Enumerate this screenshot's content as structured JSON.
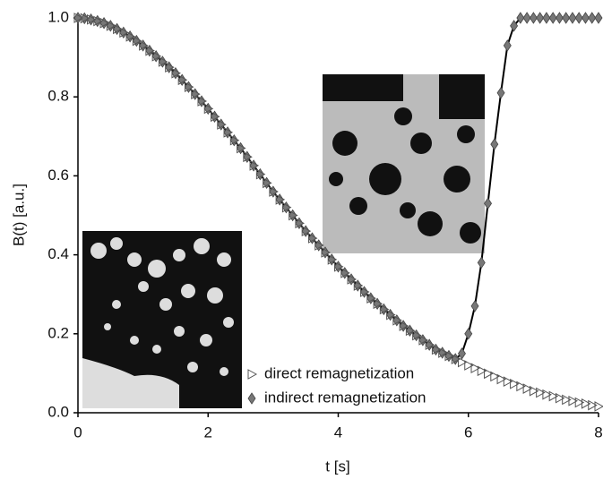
{
  "chart_data": {
    "type": "scatter",
    "xlabel": "t [s]",
    "ylabel": "B(t) [a.u.]",
    "xlim": [
      0,
      8
    ],
    "xticks": [
      0,
      2,
      4,
      6,
      8
    ],
    "ylim": [
      0,
      1
    ],
    "yticks": [
      {
        "value": 0,
        "label": "0.0"
      },
      0.2,
      0.4,
      0.6,
      0.8,
      {
        "value": 1,
        "label": "1.0"
      }
    ],
    "legend": "bottom",
    "x": [
      0.0,
      0.1,
      0.2,
      0.3,
      0.4,
      0.5,
      0.6,
      0.7,
      0.8,
      0.9,
      1.0,
      1.1,
      1.2,
      1.3,
      1.4,
      1.5,
      1.6,
      1.7,
      1.8,
      1.9,
      2.0,
      2.1,
      2.2,
      2.3,
      2.4,
      2.5,
      2.6,
      2.7,
      2.8,
      2.9,
      3.0,
      3.1,
      3.2,
      3.3,
      3.4,
      3.5,
      3.6,
      3.7,
      3.8,
      3.9,
      4.0,
      4.1,
      4.2,
      4.3,
      4.4,
      4.5,
      4.6,
      4.7,
      4.8,
      4.9,
      5.0,
      5.1,
      5.2,
      5.3,
      5.4,
      5.5,
      5.6,
      5.7,
      5.8,
      5.9,
      6.0,
      6.1,
      6.2,
      6.3,
      6.4,
      6.5,
      6.6,
      6.7,
      6.8,
      6.9,
      7.0,
      7.1,
      7.2,
      7.3,
      7.4,
      7.5,
      7.6,
      7.7,
      7.8,
      7.9,
      8.0
    ],
    "series": [
      {
        "name": "direct remagnetization",
        "color": "#555555",
        "marker": "triangle-right",
        "line": false,
        "values": [
          1.0,
          0.999,
          0.996,
          0.992,
          0.987,
          0.98,
          0.972,
          0.963,
          0.953,
          0.942,
          0.93,
          0.917,
          0.903,
          0.889,
          0.875,
          0.86,
          0.843,
          0.825,
          0.807,
          0.789,
          0.77,
          0.75,
          0.73,
          0.71,
          0.69,
          0.67,
          0.648,
          0.626,
          0.604,
          0.582,
          0.56,
          0.54,
          0.52,
          0.5,
          0.48,
          0.46,
          0.442,
          0.424,
          0.406,
          0.388,
          0.37,
          0.354,
          0.338,
          0.322,
          0.306,
          0.29,
          0.276,
          0.262,
          0.248,
          0.234,
          0.22,
          0.208,
          0.196,
          0.184,
          0.172,
          0.16,
          0.152,
          0.144,
          0.136,
          0.128,
          0.12,
          0.113,
          0.106,
          0.099,
          0.092,
          0.085,
          0.079,
          0.073,
          0.067,
          0.061,
          0.055,
          0.051,
          0.046,
          0.042,
          0.037,
          0.033,
          0.03,
          0.026,
          0.023,
          0.019,
          0.016
        ]
      },
      {
        "name": "indirect remagnetization",
        "color": "#777777",
        "marker": "diamond",
        "line": true,
        "values": [
          1.0,
          0.999,
          0.996,
          0.992,
          0.987,
          0.98,
          0.972,
          0.963,
          0.953,
          0.942,
          0.93,
          0.917,
          0.903,
          0.889,
          0.875,
          0.86,
          0.843,
          0.825,
          0.807,
          0.789,
          0.77,
          0.75,
          0.73,
          0.71,
          0.69,
          0.67,
          0.648,
          0.626,
          0.604,
          0.582,
          0.56,
          0.54,
          0.52,
          0.5,
          0.48,
          0.46,
          0.442,
          0.424,
          0.406,
          0.388,
          0.37,
          0.354,
          0.338,
          0.322,
          0.306,
          0.29,
          0.276,
          0.262,
          0.248,
          0.234,
          0.22,
          0.208,
          0.196,
          0.184,
          0.172,
          0.16,
          0.152,
          0.144,
          0.136,
          0.15,
          0.2,
          0.27,
          0.38,
          0.53,
          0.68,
          0.81,
          0.93,
          0.98,
          1.0,
          1.0,
          1.0,
          1.0,
          1.0,
          1.0,
          1.0,
          1.0,
          1.0,
          1.0,
          1.0,
          1.0,
          1.0
        ]
      }
    ]
  }
}
